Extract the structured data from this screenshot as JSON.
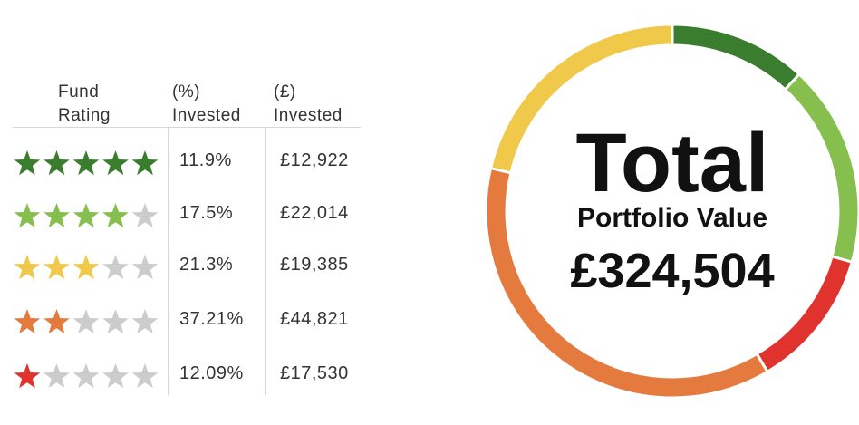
{
  "table": {
    "headers": {
      "rating": [
        "Fund",
        "Rating"
      ],
      "percent": [
        "(%)",
        "Invested"
      ],
      "amount": [
        "(£)",
        "Invested"
      ]
    },
    "rows": [
      {
        "stars": 5,
        "percent": "11.9%",
        "amount": "£12,922",
        "color": "#3a7d2e"
      },
      {
        "stars": 4,
        "percent": "17.5%",
        "amount": "£22,014",
        "color": "#86bf4e"
      },
      {
        "stars": 3,
        "percent": "21.3%",
        "amount": "£19,385",
        "color": "#f0c84a"
      },
      {
        "stars": 2,
        "percent": "37.21%",
        "amount": "£44,821",
        "color": "#e47a3e"
      },
      {
        "stars": 1,
        "percent": "12.09%",
        "amount": "£17,530",
        "color": "#e0332e"
      }
    ],
    "empty_star_color": "#cccccc"
  },
  "chart_data": {
    "type": "pie",
    "style": "donut",
    "categories": [
      "5 star",
      "4 star",
      "1 star",
      "2 star",
      "3 star"
    ],
    "values": [
      11.9,
      17.5,
      12.09,
      37.21,
      21.3
    ],
    "colors": [
      "#3a7d2e",
      "#86bf4e",
      "#e0332e",
      "#e47a3e",
      "#f0c84a"
    ],
    "center_title": "Total",
    "center_subtitle": "Portfolio Value",
    "center_value": "£324,504"
  }
}
